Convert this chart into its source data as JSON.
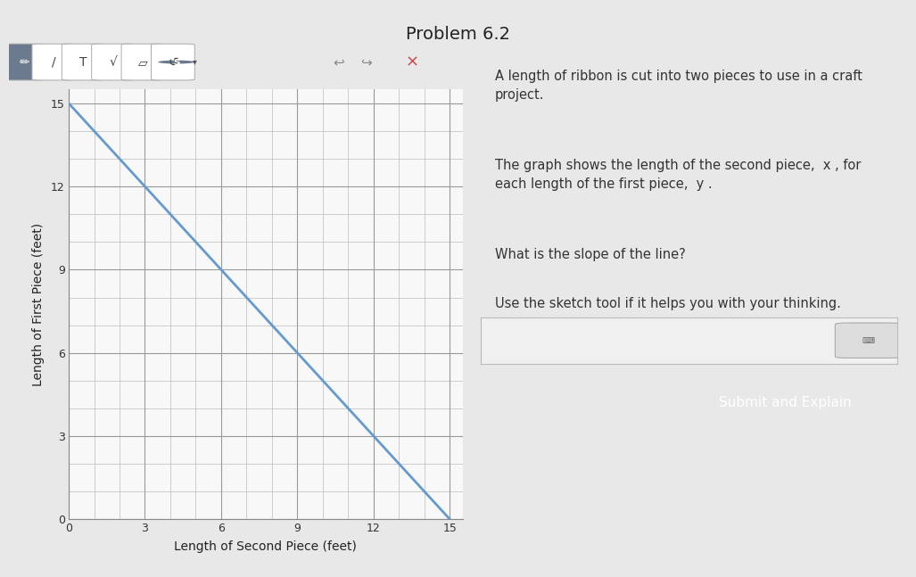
{
  "title": "Problem 6.2",
  "xlabel": "Length of Second Piece (feet)",
  "ylabel": "Length of First Piece (feet)",
  "x_ticks": [
    0,
    3,
    6,
    9,
    12,
    15
  ],
  "y_ticks": [
    0,
    3,
    6,
    9,
    12,
    15
  ],
  "xlim": [
    0,
    15.5
  ],
  "ylim": [
    0,
    15.5
  ],
  "line_x": [
    0,
    15
  ],
  "line_y": [
    15,
    0
  ],
  "line_color": "#6699cc",
  "line_width": 2.0,
  "grid_color": "#bbbbbb",
  "plot_bg_color": "#f8f8f8",
  "fig_bg_color": "#e8e8e8",
  "right_bg_color": "#ebebeb",
  "problem_title": "Problem 6.2",
  "text1": "A length of ribbon is cut into two pieces to use in a craft\nproject.",
  "text2": "The graph shows the length of the second piece,  x , for\neach length of the first piece,  y .",
  "text3": "What is the slope of the line?",
  "text4": "Use the sketch tool if it helps you with your thinking.",
  "button_text": "Submit and Explain",
  "button_color": "#91b8d8",
  "text_color": "#333333",
  "toolbar_bg": "#d8d8d8",
  "toolbar_selected_bg": "#6b7a8d",
  "input_box_bg": "#f0f0f0",
  "tick_label_size": 9,
  "axis_label_size": 10
}
